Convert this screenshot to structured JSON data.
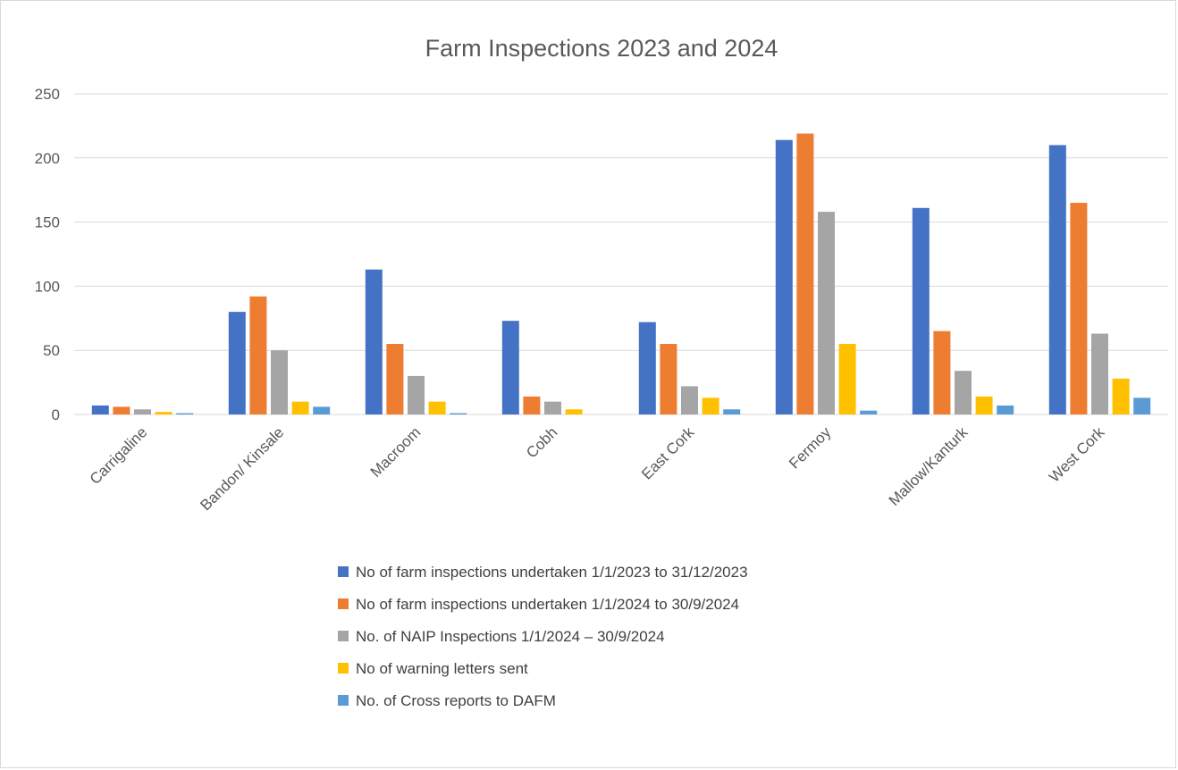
{
  "chart_data": {
    "type": "bar",
    "title": "Farm Inspections 2023 and 2024",
    "xlabel": "",
    "ylabel": "",
    "ylim": [
      0,
      250
    ],
    "yticks": [
      "0",
      "50",
      "100",
      "150",
      "200",
      "250"
    ],
    "grid": true,
    "legend_position": "bottom",
    "categories": [
      "Carrigaline",
      "Bandon/ Kinsale",
      "Macroom",
      "Cobh",
      "East Cork",
      "Fermoy",
      "Mallow/Kanturk",
      "West Cork"
    ],
    "series": [
      {
        "name": "No of farm inspections undertaken 1/1/2023 to 31/12/2023",
        "color": "#4472c4",
        "values": [
          7,
          80,
          113,
          73,
          72,
          214,
          161,
          210
        ]
      },
      {
        "name": "No of farm inspections undertaken 1/1/2024 to 30/9/2024",
        "color": "#ed7d31",
        "values": [
          6,
          92,
          55,
          14,
          55,
          219,
          65,
          165
        ]
      },
      {
        "name": "No. of NAIP Inspections 1/1/2024 – 30/9/2024",
        "color": "#a5a5a5",
        "values": [
          4,
          50,
          30,
          10,
          22,
          158,
          34,
          63
        ]
      },
      {
        "name": "No of warning letters sent",
        "color": "#ffc000",
        "values": [
          2,
          10,
          10,
          4,
          13,
          55,
          14,
          28
        ]
      },
      {
        "name": "No. of Cross reports to DAFM",
        "color": "#5b9bd5",
        "values": [
          1,
          6,
          1,
          0,
          4,
          3,
          7,
          13
        ]
      }
    ]
  }
}
